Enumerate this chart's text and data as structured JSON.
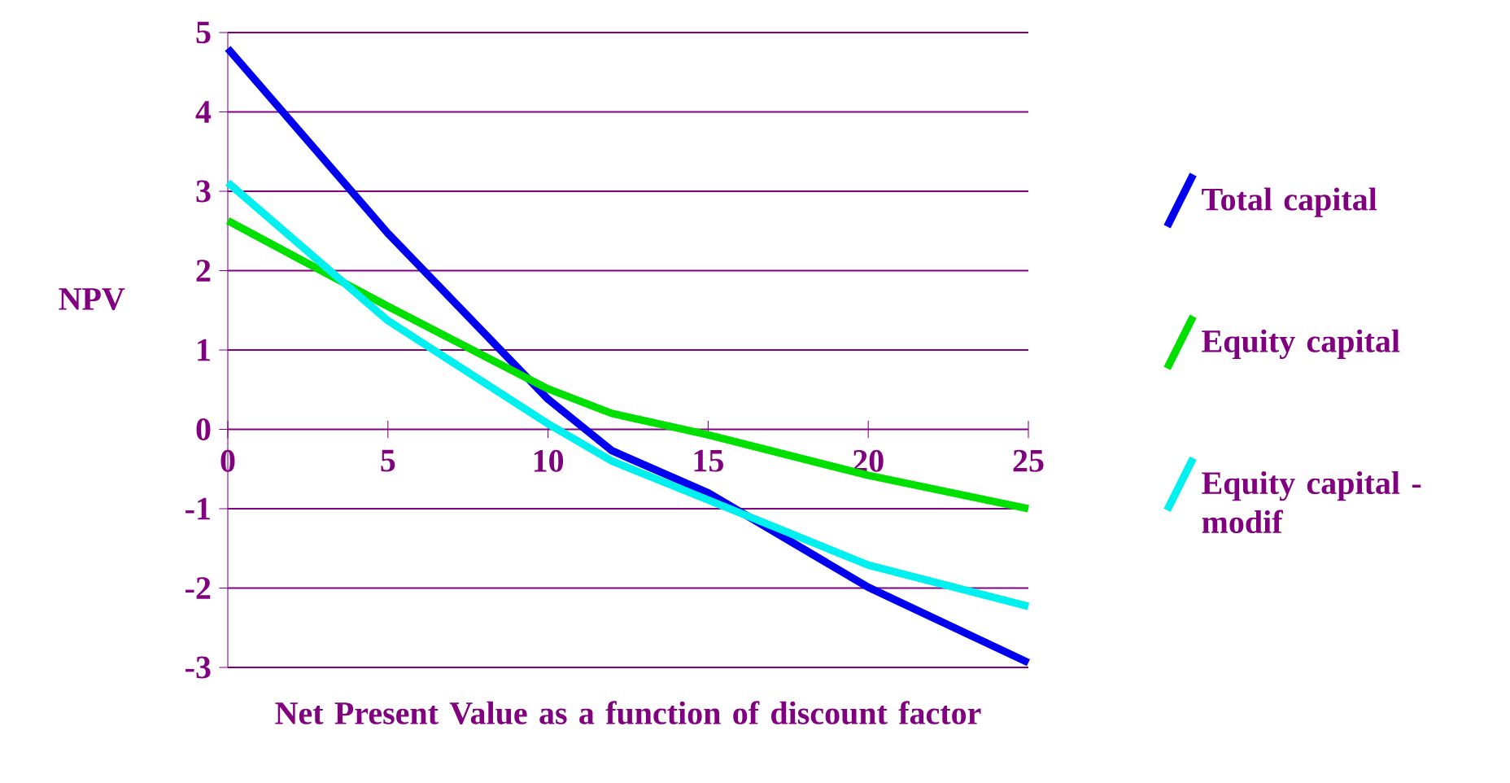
{
  "chart_data": {
    "type": "line",
    "xlabel": "Net Present Value as a function of discount factor",
    "ylabel": "NPV",
    "x": [
      0,
      5,
      10,
      12,
      15,
      20,
      25
    ],
    "series": [
      {
        "name": "Total capital",
        "color": "#0000ee",
        "values": [
          4.8,
          2.47,
          0.38,
          -0.27,
          -0.8,
          -1.99,
          -2.94
        ]
      },
      {
        "name": "Equity capital",
        "color": "#00e000",
        "values": [
          2.63,
          1.55,
          0.51,
          0.2,
          -0.07,
          -0.58,
          -1.0
        ]
      },
      {
        "name": "Equity capital - modif",
        "color": "#00f0f0",
        "values": [
          3.11,
          1.37,
          0.07,
          -0.4,
          -0.89,
          -1.71,
          -2.23
        ]
      }
    ],
    "xlim": [
      0,
      25
    ],
    "ylim": [
      -3,
      5
    ],
    "xticks": [
      0,
      5,
      10,
      15,
      20,
      25
    ],
    "yticks": [
      -3,
      -2,
      -1,
      0,
      1,
      2,
      3,
      4,
      5
    ],
    "grid": "y",
    "legend": "right",
    "marker": "none",
    "line_style": "solid"
  }
}
